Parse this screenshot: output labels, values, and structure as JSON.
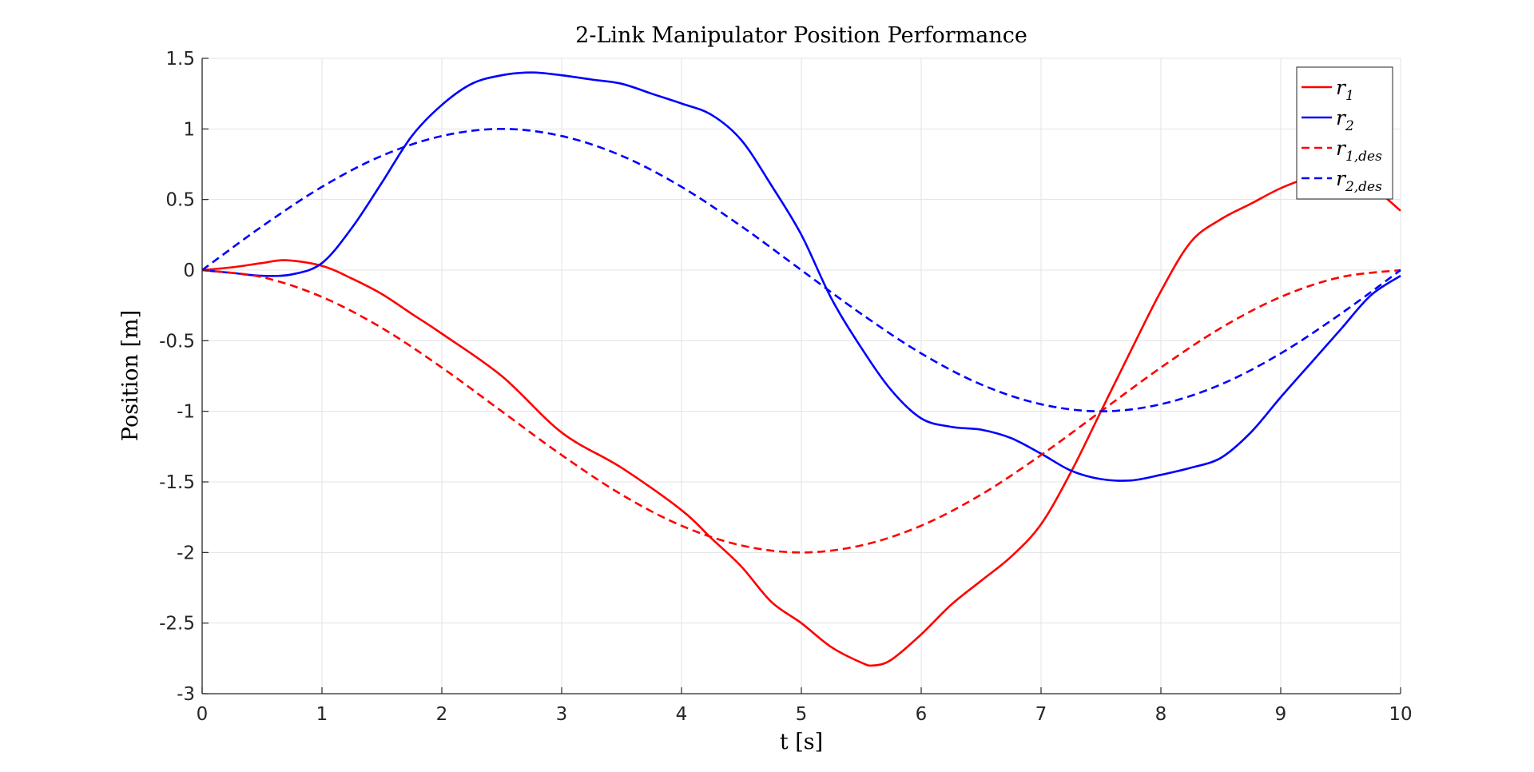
{
  "chart_data": {
    "type": "line",
    "title": "2-Link Manipulator Position Performance",
    "xlabel": "t [s]",
    "ylabel": "Position [m]",
    "xlim": [
      0,
      10
    ],
    "ylim": [
      -3,
      1.5
    ],
    "xticks": [
      0,
      1,
      2,
      3,
      4,
      5,
      6,
      7,
      8,
      9,
      10
    ],
    "yticks": [
      -3,
      -2.5,
      -2,
      -1.5,
      -1,
      -0.5,
      0,
      0.5,
      1,
      1.5
    ],
    "grid": true,
    "legend": "top-right",
    "series": [
      {
        "name": "r1",
        "legend_base": "r",
        "legend_sub": "1",
        "color": "#ff0000",
        "dash": "solid",
        "x": [
          0,
          0.25,
          0.5,
          0.7,
          1.0,
          1.25,
          1.5,
          1.75,
          2.0,
          2.5,
          3.0,
          3.5,
          4.0,
          4.25,
          4.5,
          4.75,
          5.0,
          5.25,
          5.5,
          5.6,
          5.75,
          6.0,
          6.25,
          6.5,
          6.75,
          7.0,
          7.25,
          7.5,
          7.75,
          8.0,
          8.25,
          8.5,
          8.75,
          9.0,
          9.25,
          9.5,
          9.75,
          10.0
        ],
        "y": [
          0,
          0.02,
          0.05,
          0.07,
          0.03,
          -0.06,
          -0.17,
          -0.31,
          -0.45,
          -0.75,
          -1.15,
          -1.4,
          -1.7,
          -1.9,
          -2.1,
          -2.35,
          -2.5,
          -2.67,
          -2.78,
          -2.8,
          -2.76,
          -2.58,
          -2.37,
          -2.2,
          -2.03,
          -1.8,
          -1.43,
          -1.0,
          -0.57,
          -0.15,
          0.2,
          0.36,
          0.47,
          0.58,
          0.66,
          0.72,
          0.6,
          0.42
        ]
      },
      {
        "name": "r2",
        "legend_base": "r",
        "legend_sub": "2",
        "color": "#0000ff",
        "dash": "solid",
        "x": [
          0,
          0.25,
          0.5,
          0.75,
          1.0,
          1.25,
          1.5,
          1.75,
          2.0,
          2.25,
          2.5,
          2.75,
          3.0,
          3.25,
          3.5,
          3.75,
          4.0,
          4.25,
          4.5,
          4.75,
          5.0,
          5.25,
          5.5,
          5.75,
          6.0,
          6.25,
          6.5,
          6.75,
          7.0,
          7.25,
          7.5,
          7.75,
          8.0,
          8.25,
          8.5,
          8.75,
          9.0,
          9.25,
          9.5,
          9.75,
          10.0
        ],
        "y": [
          0,
          -0.02,
          -0.04,
          -0.03,
          0.05,
          0.3,
          0.62,
          0.95,
          1.17,
          1.32,
          1.38,
          1.4,
          1.38,
          1.35,
          1.32,
          1.25,
          1.18,
          1.1,
          0.92,
          0.6,
          0.25,
          -0.2,
          -0.55,
          -0.85,
          -1.05,
          -1.11,
          -1.13,
          -1.19,
          -1.3,
          -1.42,
          -1.48,
          -1.49,
          -1.45,
          -1.4,
          -1.33,
          -1.15,
          -0.9,
          -0.66,
          -0.42,
          -0.18,
          -0.04
        ]
      },
      {
        "name": "r1,des",
        "legend_base": "r",
        "legend_sub": "1,des",
        "color": "#ff0000",
        "dash": "dashed",
        "x": [
          0,
          0.5,
          1.0,
          1.5,
          2.0,
          2.5,
          3.0,
          3.5,
          4.0,
          4.5,
          5.0,
          5.5,
          6.0,
          6.5,
          7.0,
          7.5,
          8.0,
          8.5,
          9.0,
          9.5,
          10.0
        ],
        "y": [
          0,
          -0.05,
          -0.19,
          -0.41,
          -0.69,
          -1.0,
          -1.31,
          -1.59,
          -1.81,
          -1.95,
          -2.0,
          -1.95,
          -1.81,
          -1.59,
          -1.31,
          -1.0,
          -0.69,
          -0.41,
          -0.19,
          -0.05,
          0
        ]
      },
      {
        "name": "r2,des",
        "legend_base": "r",
        "legend_sub": "2,des",
        "color": "#0000ff",
        "dash": "dashed",
        "x": [
          0,
          0.5,
          1.0,
          1.5,
          2.0,
          2.5,
          3.0,
          3.5,
          4.0,
          4.5,
          5.0,
          5.5,
          6.0,
          6.5,
          7.0,
          7.5,
          8.0,
          8.5,
          9.0,
          9.5,
          10.0
        ],
        "y": [
          0,
          0.31,
          0.59,
          0.81,
          0.95,
          1.0,
          0.95,
          0.81,
          0.59,
          0.31,
          0,
          -0.31,
          -0.59,
          -0.81,
          -0.95,
          -1.0,
          -0.95,
          -0.81,
          -0.59,
          -0.31,
          0
        ]
      }
    ]
  }
}
